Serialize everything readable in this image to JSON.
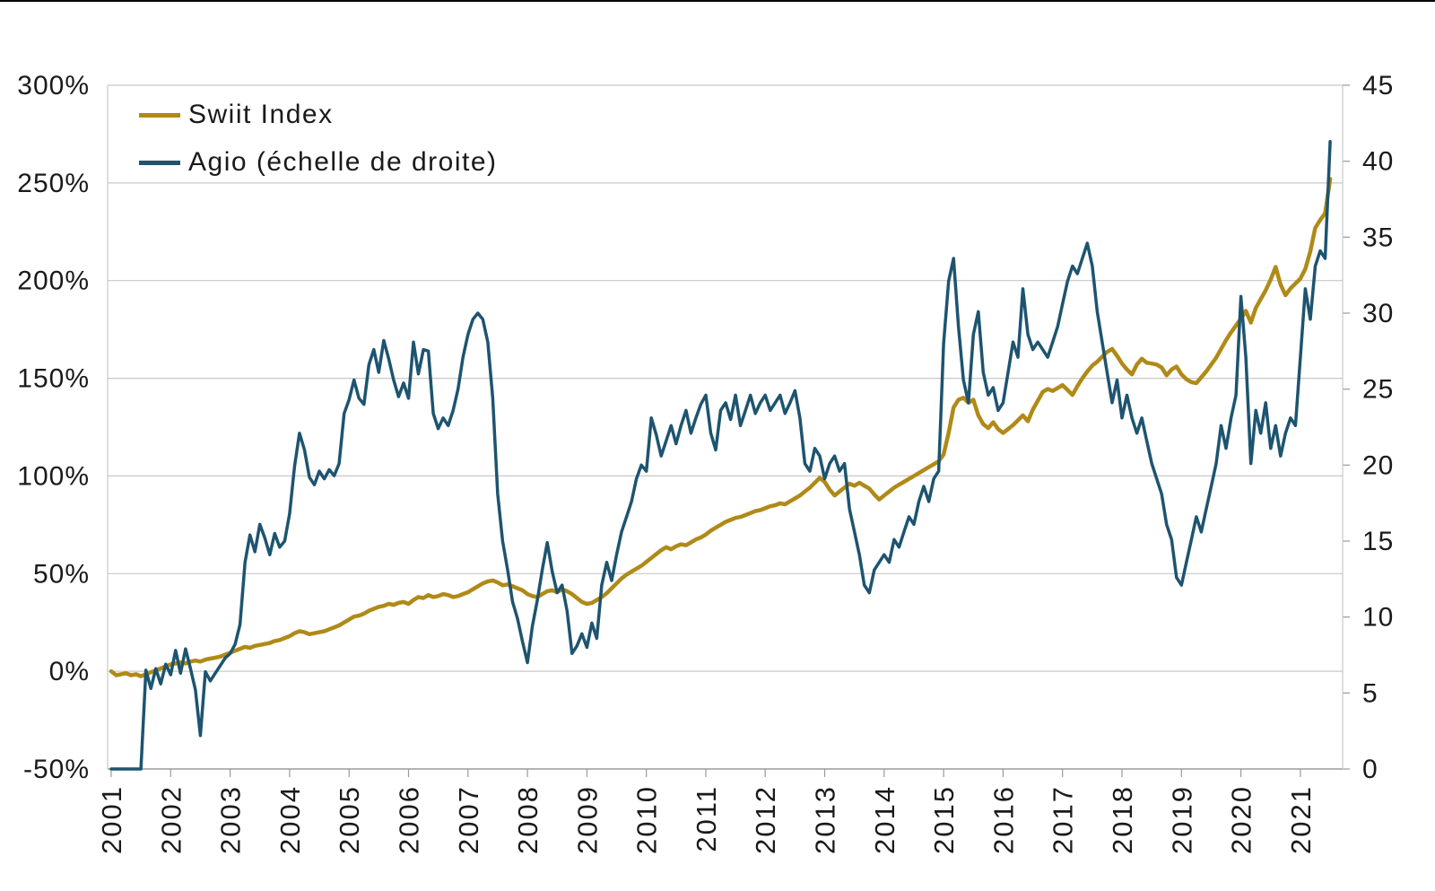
{
  "chart_data": {
    "type": "line",
    "title": "",
    "legend_position": "top-left-inside",
    "grid": "horizontal",
    "x_axis": {
      "tick_labels": [
        "2001",
        "2002",
        "2003",
        "2004",
        "2005",
        "2006",
        "2007",
        "2008",
        "2009",
        "2010",
        "2011",
        "2012",
        "2013",
        "2014",
        "2015",
        "2016",
        "2017",
        "2018",
        "2019",
        "2020",
        "2021"
      ],
      "range": [
        2001,
        2021.65
      ]
    },
    "left_axis": {
      "tick_labels": [
        "300%",
        "250%",
        "200%",
        "150%",
        "100%",
        "50%",
        "0%",
        "-50%"
      ],
      "range": [
        -50,
        300
      ],
      "unit": "percent"
    },
    "right_axis": {
      "tick_labels": [
        "45",
        "40",
        "35",
        "30",
        "25",
        "20",
        "15",
        "10",
        "5",
        "0"
      ],
      "range": [
        0,
        45
      ]
    },
    "x_start": 2001.0,
    "x_step_years": 0.0833333,
    "series": [
      {
        "name": "Swiit Index",
        "axis": "left",
        "color": "#B08A18",
        "values": [
          0,
          -2,
          -1.5,
          -1,
          -2,
          -1.5,
          -2.5,
          -1.5,
          -0.5,
          0.5,
          1.5,
          2.5,
          3.5,
          4,
          4.5,
          4,
          5,
          5.5,
          5,
          6,
          6.5,
          7,
          7.5,
          8.5,
          9.5,
          10.5,
          11.5,
          12.5,
          12,
          13,
          13.5,
          14,
          14.5,
          15.5,
          16,
          17,
          18,
          19.5,
          20.5,
          20,
          19,
          19.5,
          20,
          20.5,
          21.5,
          22.5,
          23.5,
          25,
          26.5,
          28,
          28.5,
          29.5,
          31,
          32,
          33,
          33.5,
          34.5,
          34,
          35,
          35.5,
          34.5,
          36.5,
          38,
          37.5,
          39,
          38,
          38.5,
          39.5,
          39,
          38,
          38.5,
          39.5,
          40.5,
          42,
          43.5,
          45,
          46,
          46.5,
          45.5,
          44,
          44.5,
          43.5,
          42.5,
          41.5,
          39.5,
          38.5,
          38,
          39.5,
          41,
          41.5,
          40.5,
          42,
          41,
          39.5,
          37.5,
          35.5,
          34.5,
          35,
          36.5,
          38,
          40,
          42.5,
          45,
          47.5,
          49.5,
          51,
          52.5,
          54,
          56,
          58,
          60,
          62,
          63.5,
          62.5,
          64,
          65,
          64.5,
          66,
          67.5,
          68.5,
          70,
          72,
          73.5,
          75,
          76.5,
          77.5,
          78.5,
          79,
          80,
          81,
          82,
          82.5,
          83.5,
          84.5,
          85,
          86,
          85.5,
          87,
          88.5,
          90,
          92,
          94,
          96.5,
          99,
          97,
          93,
          90,
          92,
          94,
          96,
          95,
          96.5,
          95,
          93.5,
          90.5,
          88,
          90,
          92,
          94,
          95.5,
          97,
          98.5,
          100,
          101.5,
          103,
          104.5,
          106,
          107.5,
          111,
          122,
          135,
          139,
          140,
          137.5,
          139,
          131,
          126.5,
          124.5,
          127.5,
          124,
          122,
          124,
          126,
          128.5,
          131,
          128,
          134,
          138.5,
          143,
          144.5,
          143.5,
          145,
          146.5,
          144,
          141.5,
          146,
          150,
          153.5,
          156.5,
          158.5,
          161,
          163.5,
          165,
          161.5,
          157.5,
          154.5,
          152,
          157,
          160,
          158,
          157.5,
          157,
          155.5,
          151.5,
          154.5,
          156,
          152,
          149.5,
          148,
          147.5,
          150.5,
          153.5,
          157,
          160.5,
          165,
          169.5,
          173.5,
          177,
          180.5,
          184.5,
          178.5,
          186,
          190.5,
          195,
          200.5,
          207,
          198,
          192.5,
          196,
          198.5,
          201,
          206,
          215,
          227,
          231,
          234.5,
          252
        ]
      },
      {
        "name": "Agio (échelle de droite)",
        "axis": "right",
        "color": "#1D5470",
        "values": [
          0,
          0,
          0,
          0,
          0,
          0,
          0,
          6.5,
          5.3,
          6.6,
          5.6,
          6.9,
          6.2,
          7.8,
          6.3,
          7.9,
          6.6,
          5.2,
          2.2,
          6.4,
          5.8,
          6.3,
          6.8,
          7.3,
          7.6,
          8.2,
          9.5,
          13.6,
          15.4,
          14.3,
          16.1,
          15.2,
          14.1,
          15.5,
          14.6,
          15,
          16.8,
          19.9,
          22.1,
          21,
          19.2,
          18.7,
          19.6,
          19.1,
          19.7,
          19.3,
          20.1,
          23.4,
          24.3,
          25.6,
          24.4,
          24,
          26.6,
          27.6,
          26.1,
          28.2,
          27,
          25.6,
          24.5,
          25.4,
          24.4,
          28.1,
          26,
          27.6,
          27.5,
          23.4,
          22.4,
          23.1,
          22.6,
          23.6,
          25,
          27.1,
          28.6,
          29.6,
          30,
          29.6,
          28.1,
          24.4,
          18.1,
          15,
          13.1,
          11,
          9.9,
          8.4,
          7,
          9.4,
          11.1,
          13.1,
          14.9,
          13,
          11.6,
          12.1,
          10.4,
          7.6,
          8.1,
          8.9,
          8,
          9.6,
          8.6,
          12.1,
          13.6,
          12.4,
          14.1,
          15.6,
          16.6,
          17.6,
          19.1,
          20,
          19.6,
          23.1,
          22,
          20.6,
          21.6,
          22.6,
          21.4,
          22.6,
          23.6,
          22.1,
          23.1,
          24,
          24.6,
          22.1,
          21,
          23.6,
          24.1,
          23,
          24.6,
          22.6,
          23.6,
          24.6,
          23.4,
          24.1,
          24.6,
          23.6,
          24.1,
          24.6,
          23.4,
          24.1,
          24.9,
          23.1,
          20.1,
          19.6,
          21.1,
          20.6,
          19.1,
          20.1,
          20.6,
          19.6,
          20.1,
          17.1,
          15.6,
          14.1,
          12.1,
          11.6,
          13.1,
          13.6,
          14.1,
          13.6,
          15.1,
          14.6,
          15.6,
          16.6,
          16.1,
          17.6,
          18.6,
          17.6,
          19.1,
          19.6,
          28,
          32.1,
          33.6,
          29.1,
          25.6,
          24.1,
          28.6,
          30.1,
          26.1,
          24.6,
          25.1,
          23.6,
          24.1,
          26.1,
          28.1,
          27.1,
          31.6,
          28.6,
          27.6,
          28.1,
          27.6,
          27.1,
          28.1,
          29.1,
          30.6,
          32.1,
          33.1,
          32.6,
          33.6,
          34.6,
          33.1,
          30.1,
          28.1,
          26.1,
          24.1,
          25.6,
          23.1,
          24.6,
          23.1,
          22.1,
          23.1,
          21.6,
          20.1,
          19.1,
          18.1,
          16.1,
          15.1,
          12.6,
          12.1,
          13.6,
          15.1,
          16.6,
          15.6,
          17.1,
          18.6,
          20.1,
          22.6,
          21.1,
          23.1,
          24.6,
          31.1,
          27.1,
          20.1,
          23.6,
          22.1,
          24.1,
          21.1,
          22.6,
          20.6,
          22.1,
          23.1,
          22.6,
          27.1,
          31.6,
          29.6,
          33.1,
          34.1,
          33.6,
          41.3
        ]
      }
    ],
    "style": {
      "grid_color": "#c8c8c8",
      "axis_color": "#9a9a9a",
      "tick_label_color": "#1a1a1a",
      "background": "#ffffff"
    }
  }
}
